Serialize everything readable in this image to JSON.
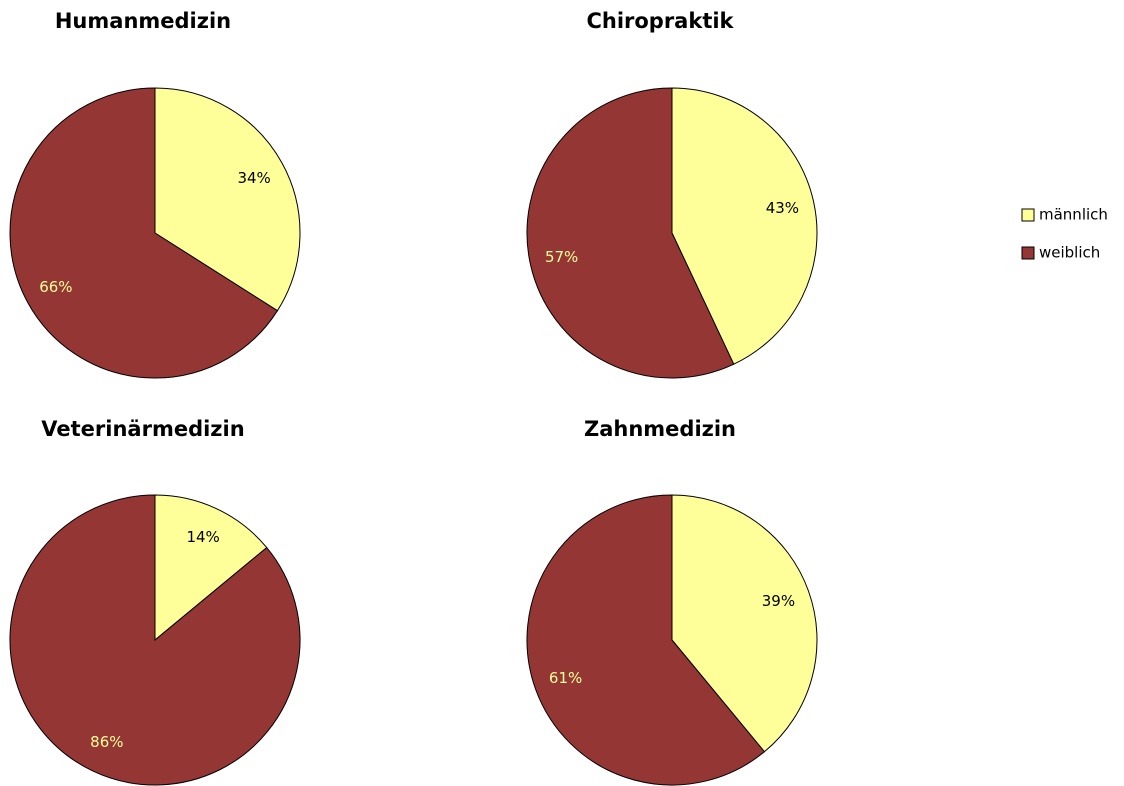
{
  "chart_data": [
    {
      "type": "pie",
      "title": "Humanmedizin",
      "categories": [
        "männlich",
        "weiblich"
      ],
      "values": [
        34,
        66
      ],
      "value_labels": [
        "34%",
        "66%"
      ],
      "colors": [
        "#ffff99",
        "#943634"
      ],
      "label_colors": [
        "#000000",
        "#ffff99"
      ],
      "legend": "right"
    },
    {
      "type": "pie",
      "title": "Chiropraktik",
      "categories": [
        "männlich",
        "weiblich"
      ],
      "values": [
        43,
        57
      ],
      "value_labels": [
        "43%",
        "57%"
      ],
      "colors": [
        "#ffff99",
        "#943634"
      ],
      "label_colors": [
        "#000000",
        "#ffff99"
      ]
    },
    {
      "type": "pie",
      "title": "Veterinärmedizin",
      "categories": [
        "männlich",
        "weiblich"
      ],
      "values": [
        14,
        86
      ],
      "value_labels": [
        "14%",
        "86%"
      ],
      "colors": [
        "#ffff99",
        "#943634"
      ],
      "label_colors": [
        "#000000",
        "#ffff99"
      ]
    },
    {
      "type": "pie",
      "title": "Zahnmedizin",
      "categories": [
        "männlich",
        "weiblich"
      ],
      "values": [
        39,
        61
      ],
      "value_labels": [
        "39%",
        "61%"
      ],
      "colors": [
        "#ffff99",
        "#943634"
      ],
      "label_colors": [
        "#000000",
        "#ffff99"
      ]
    }
  ]
}
